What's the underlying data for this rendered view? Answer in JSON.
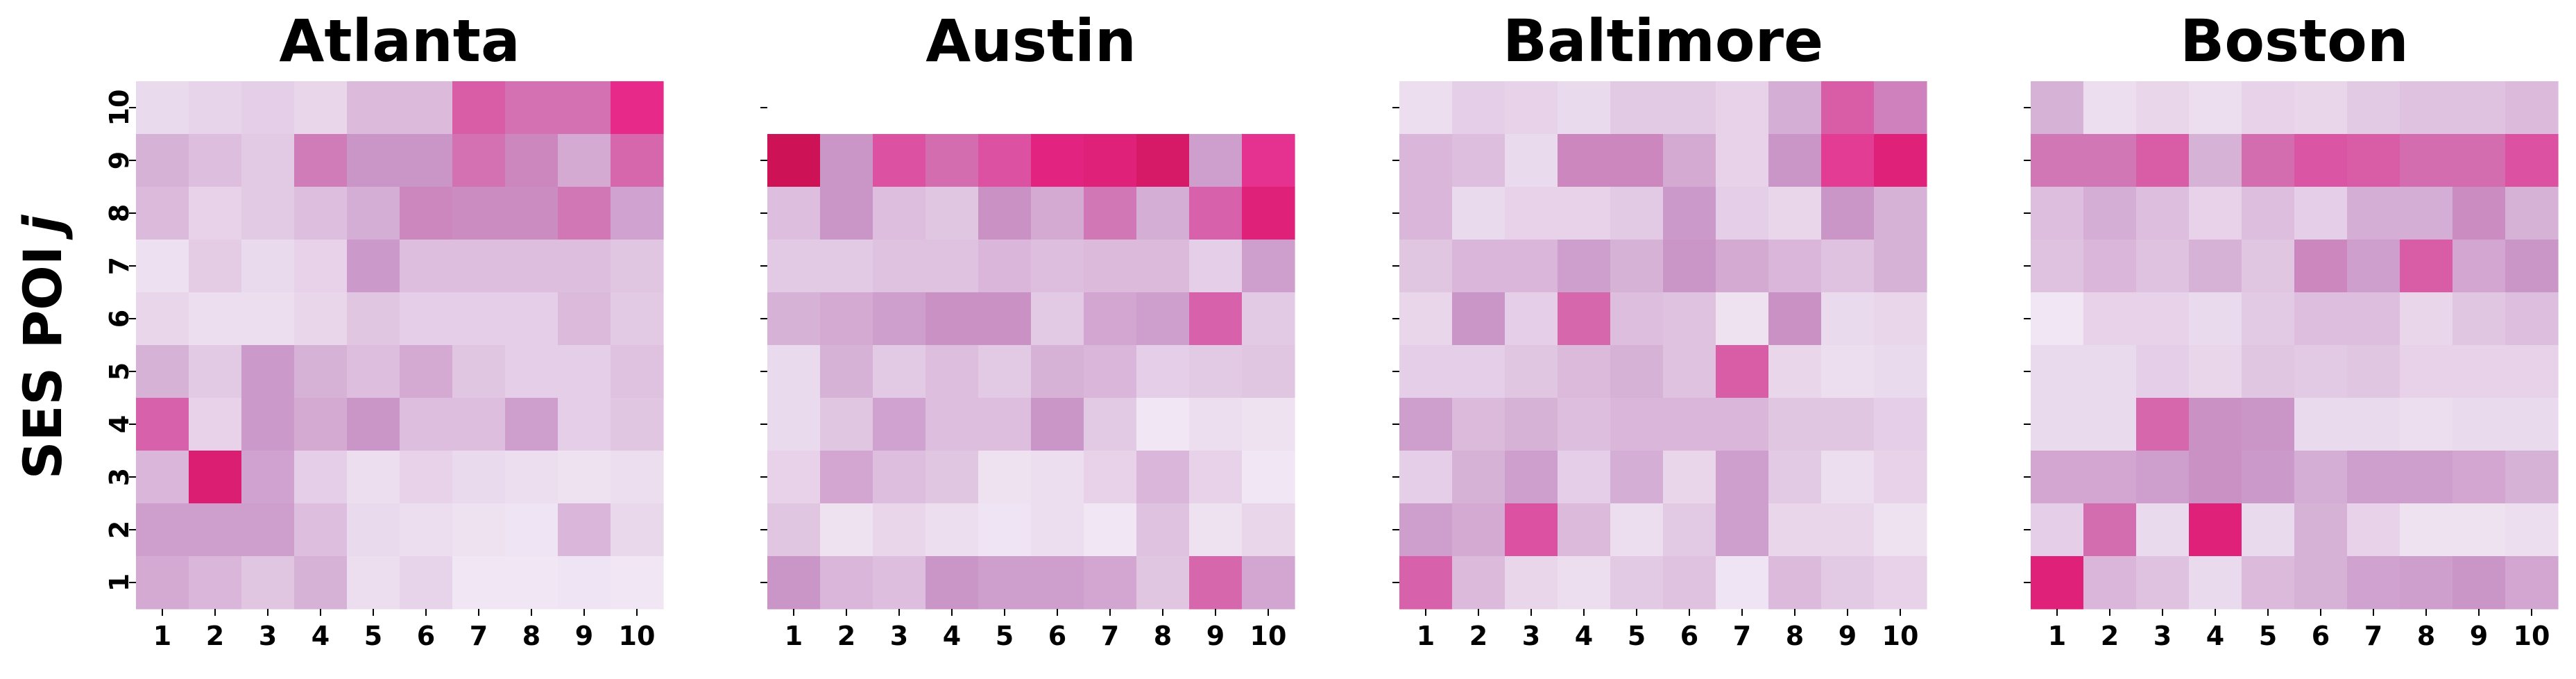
{
  "chart_data": {
    "type": "heatmap",
    "ylabel": "SES POI",
    "ylabel_symbol": "j",
    "x_ticks": [
      "1",
      "2",
      "3",
      "4",
      "5",
      "6",
      "7",
      "8",
      "9",
      "10"
    ],
    "y_ticks": [
      "1",
      "2",
      "3",
      "4",
      "5",
      "6",
      "7",
      "8",
      "9",
      "10"
    ],
    "color_low": "#f4eef8",
    "color_mid": "#c994c7",
    "color_high": "#ce1256",
    "colorbar": false,
    "grid": false,
    "panels": [
      {
        "title": "Atlanta",
        "y_tick_labels_visible": true,
        "rows": [
          [
            0.1,
            0.13,
            0.16,
            0.12,
            0.26,
            0.26,
            0.66,
            0.58,
            0.58,
            0.85
          ],
          [
            0.3,
            0.24,
            0.18,
            0.54,
            0.44,
            0.44,
            0.58,
            0.5,
            0.34,
            0.62
          ],
          [
            0.26,
            0.14,
            0.18,
            0.24,
            0.32,
            0.5,
            0.48,
            0.48,
            0.56,
            0.38
          ],
          [
            0.07,
            0.17,
            0.1,
            0.14,
            0.42,
            0.24,
            0.24,
            0.24,
            0.24,
            0.2
          ],
          [
            0.12,
            0.08,
            0.08,
            0.12,
            0.2,
            0.16,
            0.16,
            0.16,
            0.26,
            0.18
          ],
          [
            0.3,
            0.18,
            0.42,
            0.3,
            0.24,
            0.34,
            0.2,
            0.16,
            0.16,
            0.22
          ],
          [
            0.64,
            0.14,
            0.42,
            0.34,
            0.44,
            0.24,
            0.24,
            0.4,
            0.16,
            0.2
          ],
          [
            0.28,
            0.92,
            0.38,
            0.16,
            0.08,
            0.14,
            0.1,
            0.08,
            0.06,
            0.08
          ],
          [
            0.4,
            0.4,
            0.4,
            0.24,
            0.1,
            0.08,
            0.06,
            0.05,
            0.28,
            0.11
          ],
          [
            0.34,
            0.28,
            0.2,
            0.3,
            0.08,
            0.13,
            0.04,
            0.04,
            0.05,
            0.04
          ]
        ]
      },
      {
        "title": "Austin",
        "y_tick_labels_visible": false,
        "rows": [
          null,
          [
            1.0,
            0.44,
            0.7,
            0.6,
            0.7,
            0.88,
            0.9,
            0.95,
            0.4,
            0.82
          ],
          [
            0.24,
            0.44,
            0.24,
            0.2,
            0.46,
            0.34,
            0.56,
            0.32,
            0.64,
            0.9
          ],
          [
            0.18,
            0.18,
            0.22,
            0.22,
            0.28,
            0.24,
            0.26,
            0.26,
            0.16,
            0.4
          ],
          [
            0.3,
            0.34,
            0.4,
            0.46,
            0.46,
            0.18,
            0.36,
            0.4,
            0.64,
            0.18
          ],
          [
            0.1,
            0.3,
            0.18,
            0.24,
            0.18,
            0.3,
            0.28,
            0.16,
            0.18,
            0.2
          ],
          [
            0.1,
            0.2,
            0.38,
            0.24,
            0.24,
            0.44,
            0.18,
            0.04,
            0.08,
            0.06
          ],
          [
            0.14,
            0.36,
            0.24,
            0.2,
            0.06,
            0.08,
            0.14,
            0.28,
            0.14,
            0.04
          ],
          [
            0.2,
            0.06,
            0.12,
            0.08,
            0.05,
            0.08,
            0.04,
            0.22,
            0.06,
            0.12
          ],
          [
            0.44,
            0.28,
            0.24,
            0.44,
            0.4,
            0.4,
            0.36,
            0.2,
            0.62,
            0.36
          ]
        ]
      },
      {
        "title": "Baltimore",
        "y_tick_labels_visible": false,
        "rows": [
          [
            0.08,
            0.16,
            0.14,
            0.1,
            0.18,
            0.18,
            0.14,
            0.32,
            0.66,
            0.52
          ],
          [
            0.28,
            0.24,
            0.1,
            0.5,
            0.5,
            0.34,
            0.14,
            0.44,
            0.78,
            0.9
          ],
          [
            0.28,
            0.1,
            0.14,
            0.14,
            0.18,
            0.42,
            0.16,
            0.12,
            0.44,
            0.3
          ],
          [
            0.2,
            0.28,
            0.28,
            0.4,
            0.3,
            0.44,
            0.34,
            0.28,
            0.22,
            0.3
          ],
          [
            0.12,
            0.44,
            0.16,
            0.62,
            0.24,
            0.22,
            0.06,
            0.46,
            0.1,
            0.12
          ],
          [
            0.16,
            0.16,
            0.2,
            0.26,
            0.3,
            0.22,
            0.66,
            0.12,
            0.08,
            0.1
          ],
          [
            0.4,
            0.26,
            0.3,
            0.24,
            0.28,
            0.28,
            0.28,
            0.2,
            0.2,
            0.16
          ],
          [
            0.16,
            0.3,
            0.4,
            0.16,
            0.32,
            0.12,
            0.4,
            0.18,
            0.08,
            0.14
          ],
          [
            0.4,
            0.34,
            0.7,
            0.26,
            0.08,
            0.18,
            0.4,
            0.12,
            0.12,
            0.06
          ],
          [
            0.64,
            0.26,
            0.12,
            0.08,
            0.18,
            0.22,
            0.05,
            0.26,
            0.18,
            0.14
          ]
        ]
      },
      {
        "title": "Boston",
        "y_tick_labels_visible": false,
        "rows": [
          [
            0.3,
            0.08,
            0.12,
            0.08,
            0.14,
            0.12,
            0.18,
            0.22,
            0.22,
            0.26
          ],
          [
            0.56,
            0.56,
            0.66,
            0.3,
            0.6,
            0.68,
            0.66,
            0.6,
            0.6,
            0.7
          ],
          [
            0.24,
            0.32,
            0.24,
            0.14,
            0.24,
            0.16,
            0.32,
            0.32,
            0.48,
            0.3
          ],
          [
            0.22,
            0.28,
            0.22,
            0.3,
            0.2,
            0.5,
            0.4,
            0.66,
            0.36,
            0.44
          ],
          [
            0.04,
            0.14,
            0.14,
            0.1,
            0.18,
            0.24,
            0.24,
            0.12,
            0.2,
            0.24
          ],
          [
            0.1,
            0.1,
            0.16,
            0.12,
            0.2,
            0.18,
            0.2,
            0.14,
            0.14,
            0.14
          ],
          [
            0.1,
            0.1,
            0.62,
            0.46,
            0.44,
            0.1,
            0.1,
            0.08,
            0.1,
            0.1
          ],
          [
            0.36,
            0.36,
            0.4,
            0.46,
            0.42,
            0.32,
            0.4,
            0.4,
            0.36,
            0.3
          ],
          [
            0.16,
            0.6,
            0.1,
            0.9,
            0.1,
            0.3,
            0.14,
            0.06,
            0.06,
            0.08
          ],
          [
            0.9,
            0.28,
            0.22,
            0.1,
            0.26,
            0.3,
            0.38,
            0.4,
            0.44,
            0.36
          ]
        ]
      }
    ]
  }
}
